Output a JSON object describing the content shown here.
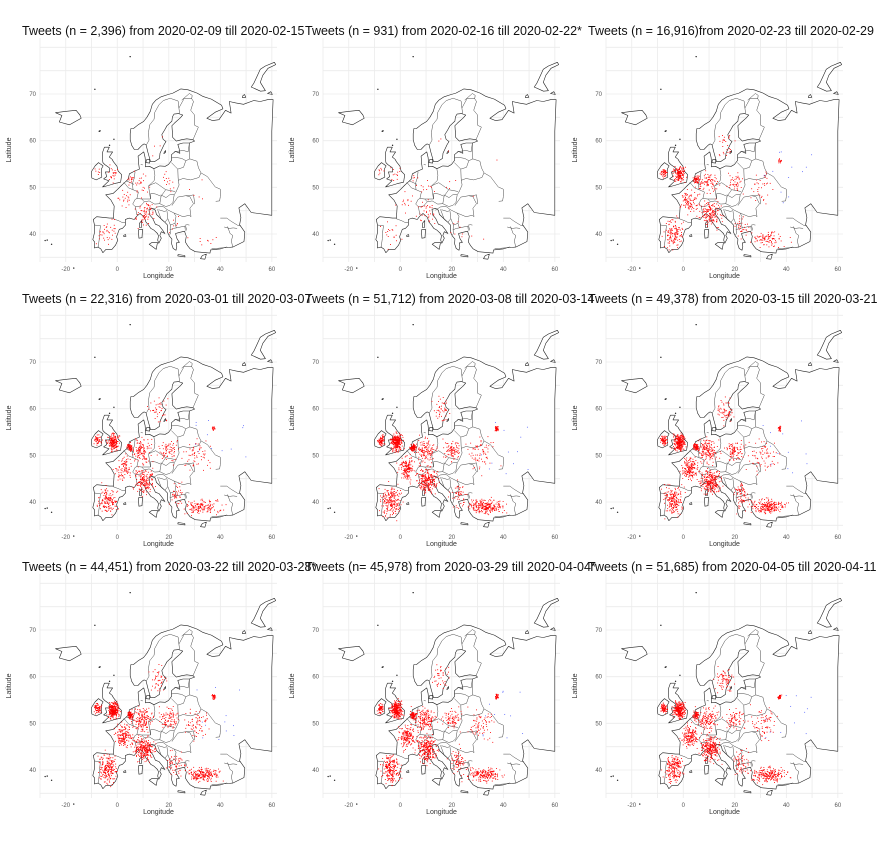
{
  "x_axis_label": "Longitude",
  "y_axis_label": "Latitude",
  "x_ticks": [
    -20,
    0,
    20,
    40,
    60
  ],
  "y_ticks": [
    40,
    50,
    60,
    70
  ],
  "map_extent": {
    "lon": [
      -30,
      62
    ],
    "lat": [
      34,
      82
    ]
  },
  "point_color": "#ff0000",
  "panels": [
    {
      "title": "Tweets (n = 2,396) from 2020-02-09 till 2020-02-15",
      "n": 2396
    },
    {
      "title": "Tweets (n = 931) from 2020-02-16 till 2020-02-22*",
      "n": 931
    },
    {
      "title": "Tweets (n = 16,916)from 2020-02-23 till 2020-02-29",
      "n": 16916
    },
    {
      "title": "Tweets (n = 22,316) from 2020-03-01 till 2020-03-07",
      "n": 22316
    },
    {
      "title": "Tweets (n = 51,712) from 2020-03-08 till 2020-03-14",
      "n": 51712
    },
    {
      "title": "Tweets (n = 49,378) from 2020-03-15 till 2020-03-21",
      "n": 49378
    },
    {
      "title": "Tweets (n = 44,451) from 2020-03-22 till 2020-03-28*",
      "n": 44451
    },
    {
      "title": "Tweets (n= 45,978) from 2020-03-29 till 2020-04-04*",
      "n": 45978
    },
    {
      "title": "Tweets (n = 51,685) from 2020-04-05 till 2020-04-11",
      "n": 51685
    }
  ]
}
